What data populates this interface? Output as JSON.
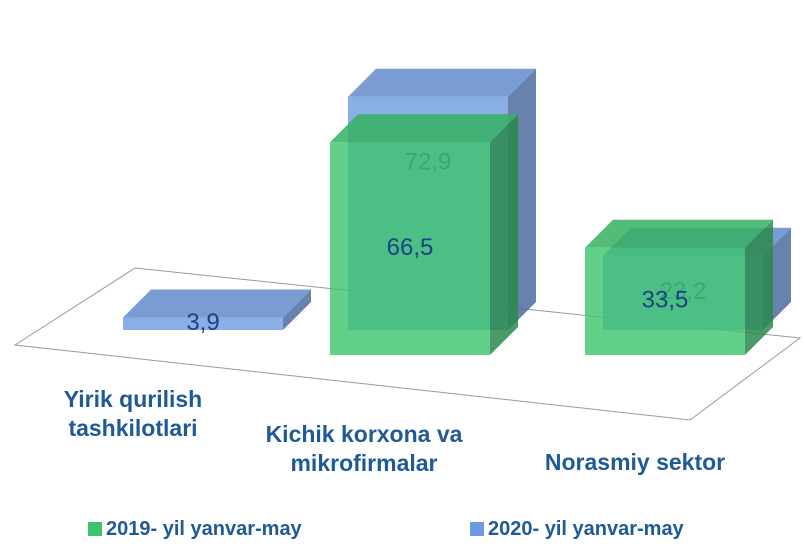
{
  "chart_data": {
    "type": "bar3d",
    "categories": [
      "Yirik qurilish tashkilotlari",
      "Kichik korxona va mikrofirmalar",
      "Norasmiy sektor"
    ],
    "series": [
      {
        "name": "2019- yil yanvar-may",
        "color": "#3cc46c",
        "values": [
          null,
          66.5,
          33.5
        ],
        "value_labels": [
          null,
          "66,5",
          "33,5"
        ]
      },
      {
        "name": "2020- yil yanvar-may",
        "color": "#6d9be0",
        "values": [
          3.9,
          72.9,
          23.2
        ],
        "value_labels": [
          "3,9",
          "72,9",
          "23,2"
        ]
      }
    ]
  }
}
